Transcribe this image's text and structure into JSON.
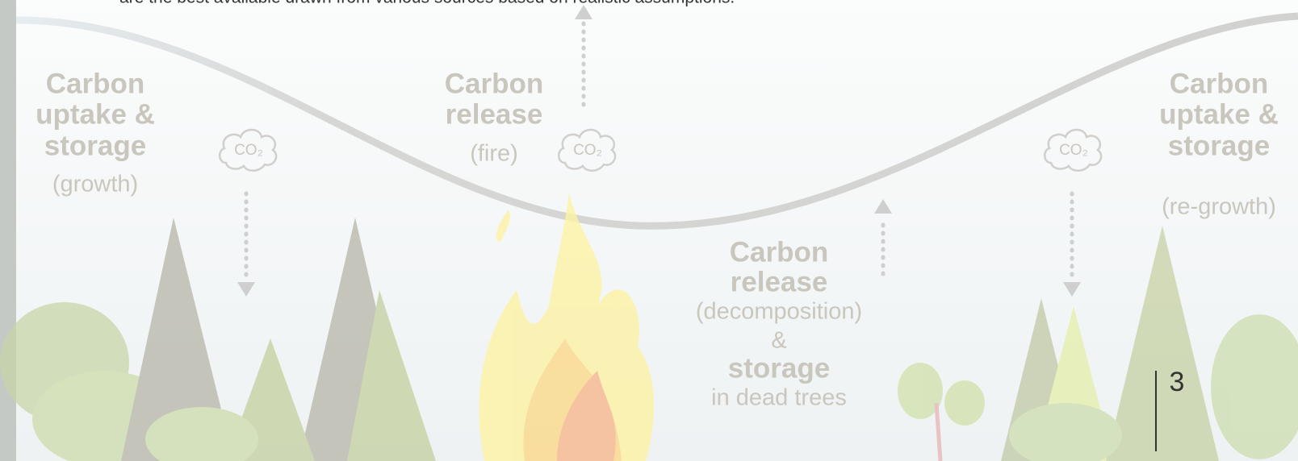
{
  "header": {
    "text": "are the best available drawn from various sources based on realistic assumptions."
  },
  "labels": [
    {
      "lines": [
        "Carbon",
        "uptake &",
        "storage"
      ],
      "note": "(growth)"
    },
    {
      "lines": [
        "Carbon",
        "release"
      ],
      "note": "(fire)"
    },
    {
      "lines": [
        "Carbon",
        "release",
        "(decomposition)",
        "&",
        "storage",
        "in dead trees"
      ]
    },
    {
      "lines": [
        "Carbon",
        "uptake &",
        "storage"
      ],
      "note": "(re-growth)"
    }
  ],
  "co2": [
    "CO₂",
    "CO₂",
    "CO₂"
  ],
  "page_number": "3"
}
